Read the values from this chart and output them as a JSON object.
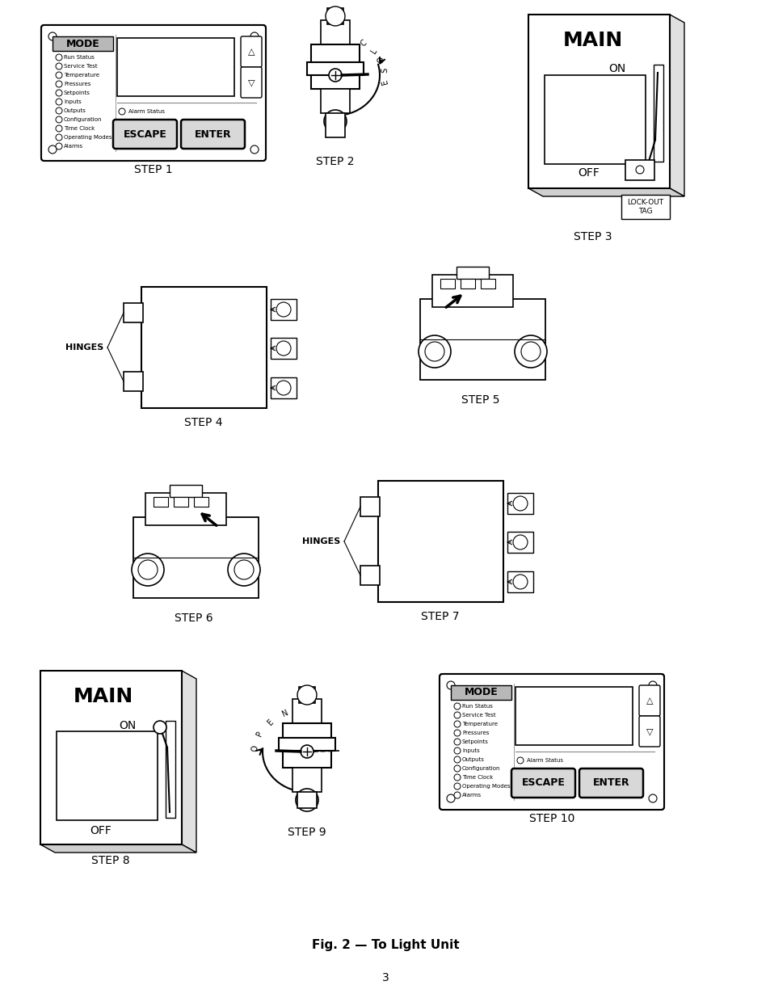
{
  "title": "Fig. 2 — To Light Unit",
  "page_number": "3",
  "background_color": "#ffffff",
  "line_color": "#000000",
  "text_color": "#000000",
  "menu_items": [
    "Run Status",
    "Service Test",
    "Temperature",
    "Pressures",
    "Setpoints",
    "Inputs",
    "Outputs",
    "Configuration",
    "Time Clock",
    "Operating Modes",
    "Alarms"
  ],
  "fig_width": 9.54,
  "fig_height": 12.35
}
